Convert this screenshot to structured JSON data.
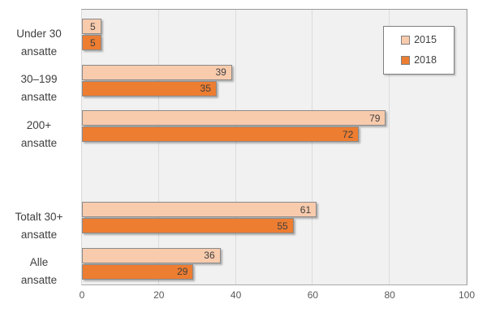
{
  "chart_data": {
    "type": "bar",
    "orientation": "horizontal",
    "title": "",
    "xlabel": "",
    "ylabel": "",
    "x_axis": {
      "min": 0,
      "max": 100,
      "ticks": [
        0,
        20,
        40,
        60,
        80,
        100
      ]
    },
    "grid": true,
    "legend": {
      "position": "top-right",
      "entries": [
        "2015",
        "2018"
      ]
    },
    "slot_count": 6,
    "categories": [
      {
        "label_lines": [
          "Under 30",
          "ansatte"
        ],
        "slot": 0
      },
      {
        "label_lines": [
          "30–199",
          "ansatte"
        ],
        "slot": 1
      },
      {
        "label_lines": [
          "200+",
          "ansatte"
        ],
        "slot": 2
      },
      {
        "label_lines": [
          "Totalt 30+",
          "ansatte"
        ],
        "slot": 4
      },
      {
        "label_lines": [
          "Alle",
          "ansatte"
        ],
        "slot": 5
      }
    ],
    "series": [
      {
        "name": "2015",
        "color": "#F8CBAD",
        "border_color": "#8A8A8A",
        "values": [
          5,
          39,
          79,
          61,
          36
        ]
      },
      {
        "name": "2018",
        "color": "#ED7D31",
        "border_color": "#8A8A8A",
        "values": [
          5,
          35,
          72,
          55,
          29
        ]
      }
    ],
    "colors": {
      "plot_bg": "#F1F1F1",
      "gridline": "#DCDCDC",
      "plot_border": "#A9A9A9",
      "axis_text": "#595959",
      "label_text": "#3F3F3F",
      "legend_border": "#7F7F7F"
    }
  }
}
